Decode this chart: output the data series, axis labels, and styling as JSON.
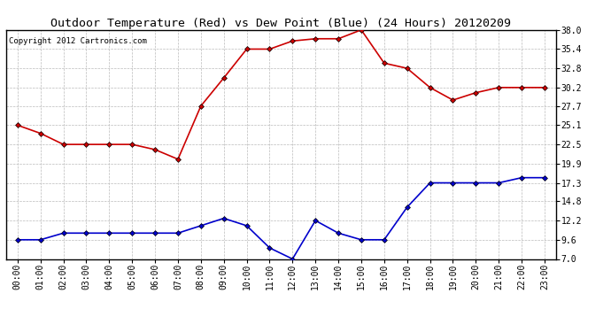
{
  "title": "Outdoor Temperature (Red) vs Dew Point (Blue) (24 Hours) 20120209",
  "copyright": "Copyright 2012 Cartronics.com",
  "hours": [
    "00:00",
    "01:00",
    "02:00",
    "03:00",
    "04:00",
    "05:00",
    "06:00",
    "07:00",
    "08:00",
    "09:00",
    "10:00",
    "11:00",
    "12:00",
    "13:00",
    "14:00",
    "15:00",
    "16:00",
    "17:00",
    "18:00",
    "19:00",
    "20:00",
    "21:00",
    "22:00",
    "23:00"
  ],
  "temp_red": [
    25.1,
    24.0,
    22.5,
    22.5,
    22.5,
    22.5,
    21.8,
    20.5,
    27.7,
    31.5,
    35.4,
    35.4,
    36.5,
    36.8,
    36.8,
    38.0,
    33.5,
    32.8,
    30.2,
    28.5,
    29.5,
    30.2,
    30.2,
    30.2
  ],
  "dew_blue": [
    9.6,
    9.6,
    10.5,
    10.5,
    10.5,
    10.5,
    10.5,
    10.5,
    11.5,
    12.5,
    11.5,
    8.5,
    7.0,
    12.2,
    10.5,
    9.6,
    9.6,
    14.0,
    17.3,
    17.3,
    17.3,
    17.3,
    18.0,
    18.0
  ],
  "ylim": [
    7.0,
    38.0
  ],
  "yticks": [
    7.0,
    9.6,
    12.2,
    14.8,
    17.3,
    19.9,
    22.5,
    25.1,
    27.7,
    30.2,
    32.8,
    35.4,
    38.0
  ],
  "red_color": "#cc0000",
  "blue_color": "#0000cc",
  "grid_color": "#bbbbbb",
  "bg_color": "#ffffff",
  "plot_bg_color": "#ffffff",
  "title_fontsize": 9.5,
  "copyright_fontsize": 6.5,
  "tick_fontsize": 7
}
